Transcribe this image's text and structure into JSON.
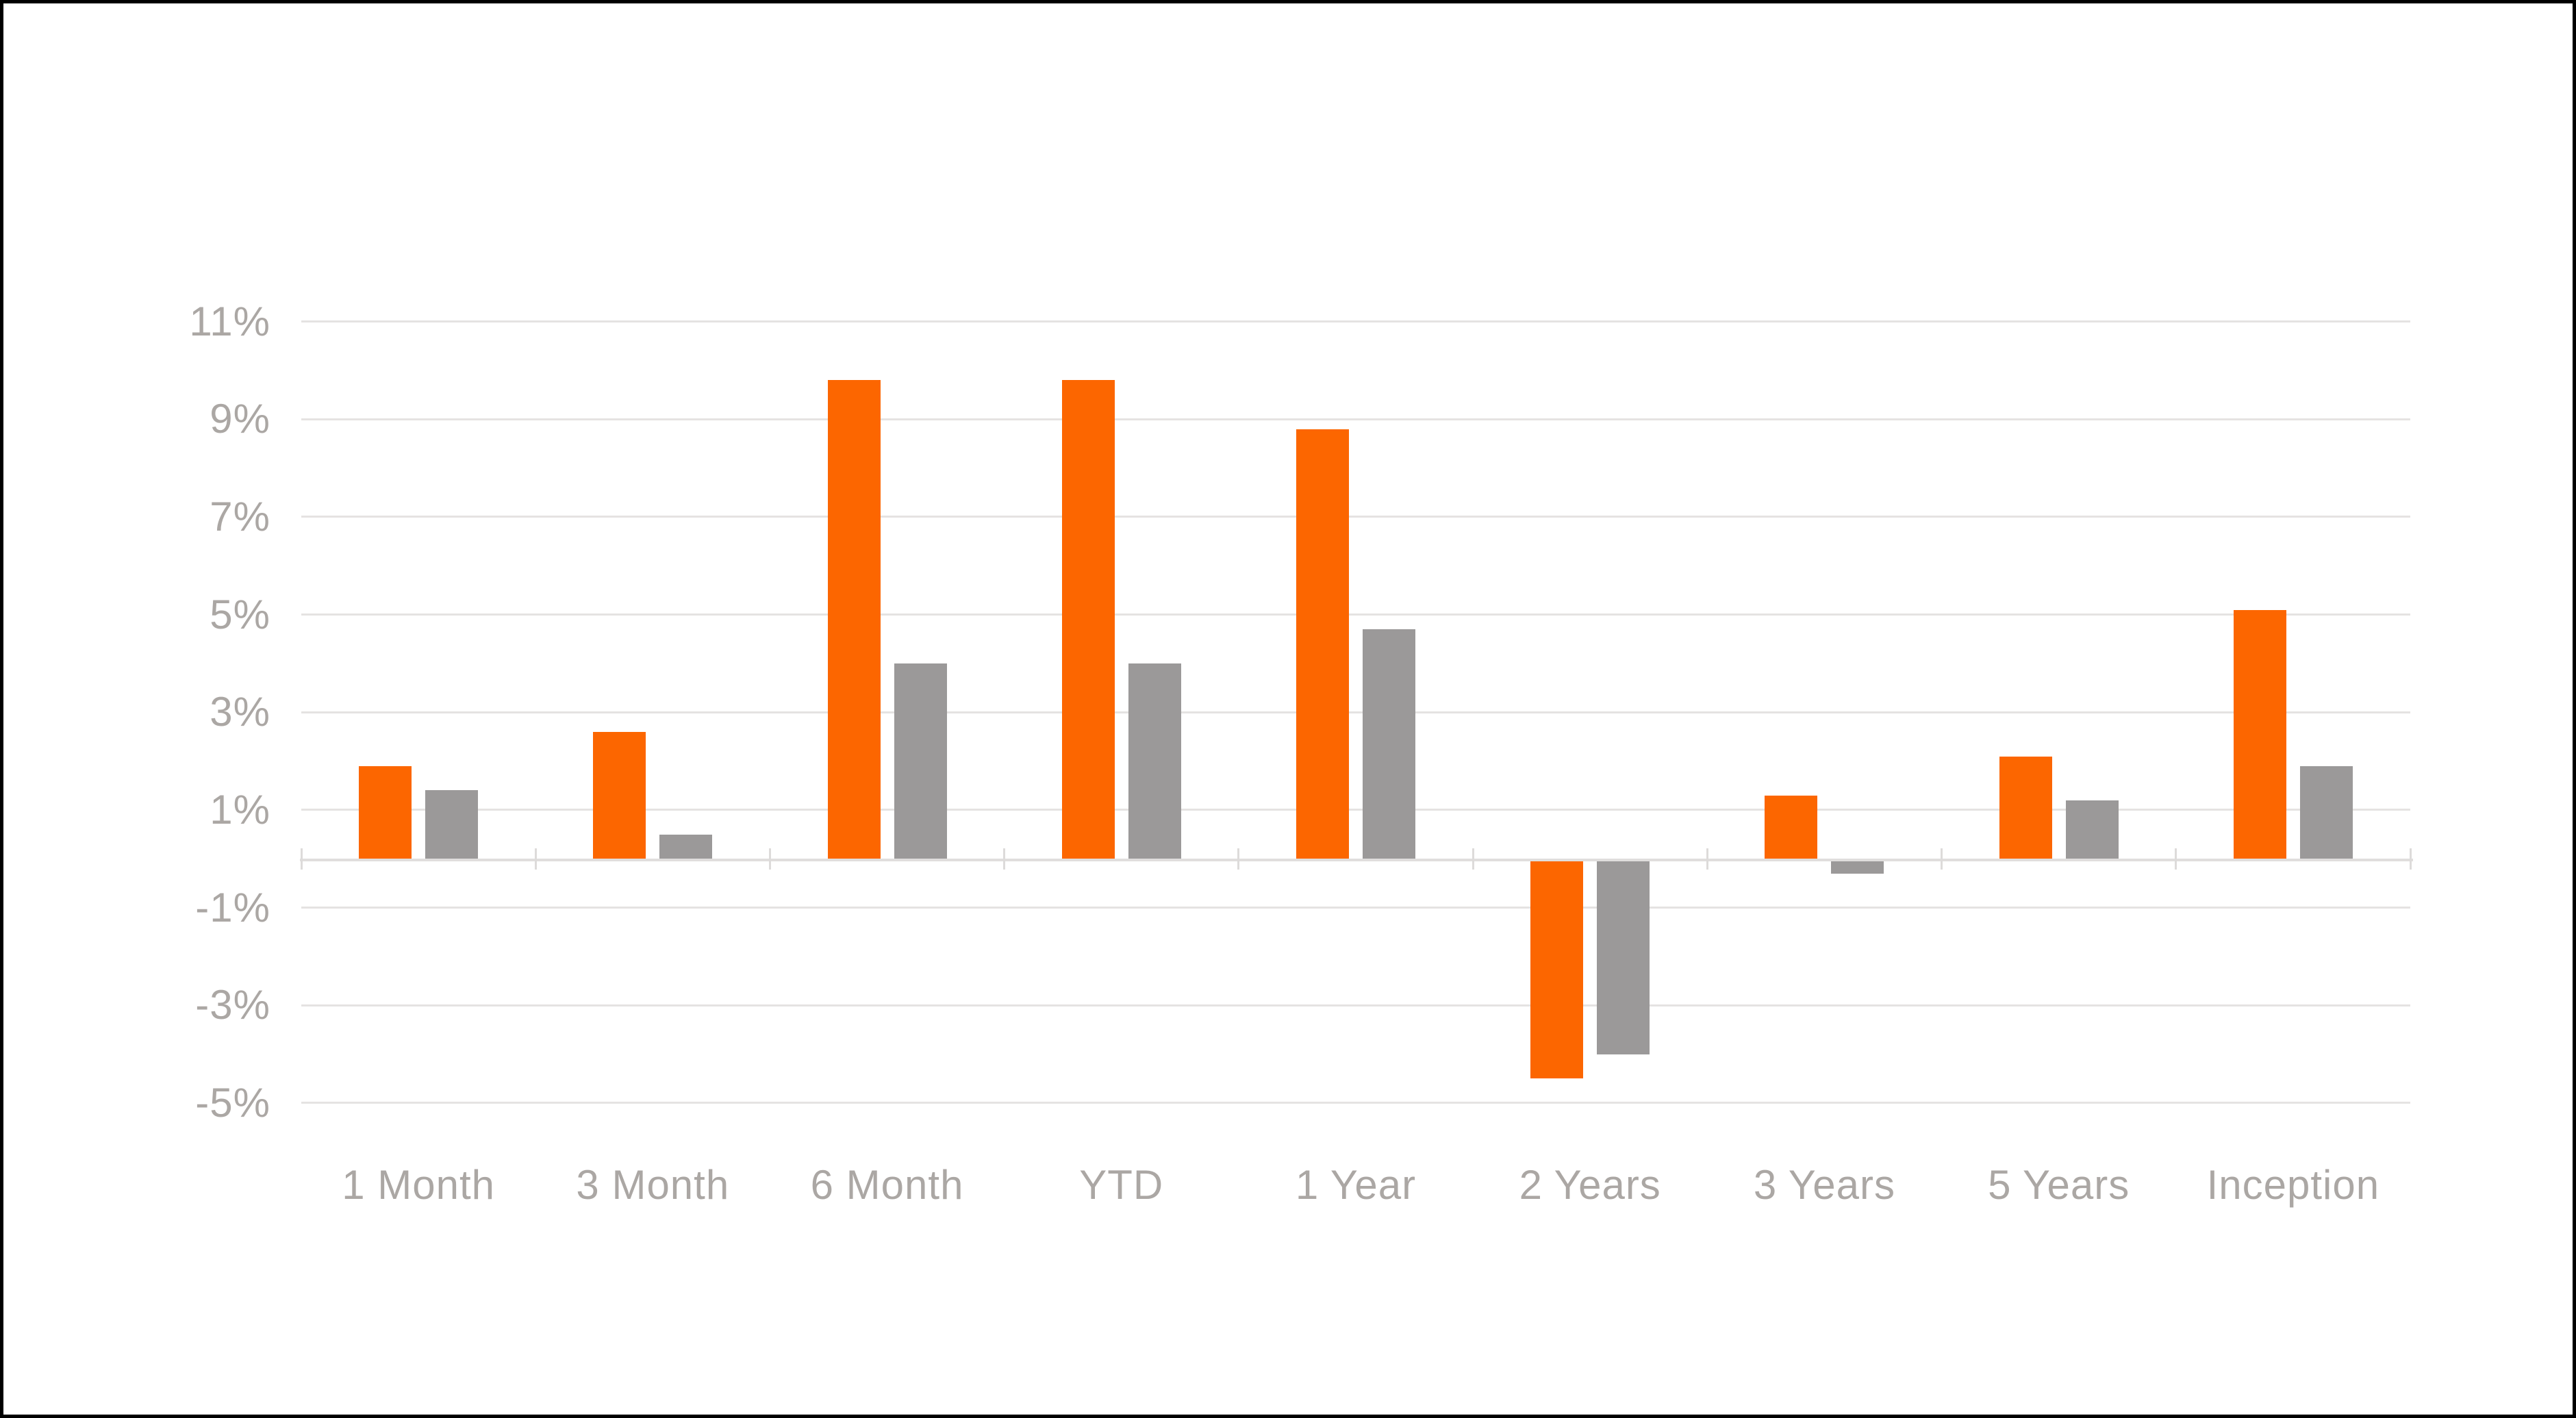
{
  "chart_data": {
    "type": "bar",
    "title": "",
    "xlabel": "",
    "ylabel": "",
    "unit": "percent",
    "categories": [
      "1 Month",
      "3 Month",
      "6 Month",
      "YTD",
      "1 Year",
      "2 Years",
      "3 Years",
      "5 Years",
      "Inception"
    ],
    "series": [
      {
        "name": "orange-series",
        "color": "#FC6600",
        "values": [
          1.9,
          2.6,
          9.8,
          9.8,
          8.8,
          -4.5,
          1.3,
          2.1,
          5.1
        ]
      },
      {
        "name": "gray-series",
        "color": "#9B9999",
        "values": [
          1.4,
          0.5,
          4.0,
          4.0,
          4.7,
          -4.0,
          -0.3,
          1.2,
          1.9
        ]
      }
    ],
    "y_ticks": {
      "values": [
        11,
        9,
        7,
        5,
        3,
        1,
        -1,
        -3,
        -5
      ],
      "labels": [
        "11%",
        "9%",
        "7%",
        "5%",
        "3%",
        "1%",
        "-1%",
        "-3%",
        "-5%"
      ]
    },
    "ylim": [
      -5.8,
      11.7
    ],
    "grid": "horizontal",
    "legend": "none"
  },
  "frame": {
    "background": "#FFFFFF",
    "border_color": "#000000"
  },
  "axis": {
    "label_color": "#ABA7A4",
    "gridline_color": "#E5E3E2",
    "baseline_color": "#E0DEDD",
    "tick_color": "#DDDBDA"
  }
}
